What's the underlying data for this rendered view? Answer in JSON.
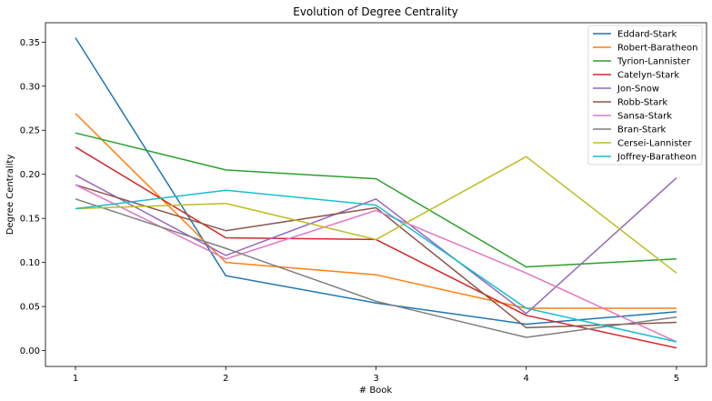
{
  "chart_data": {
    "type": "line",
    "title": "Evolution of Degree Centrality",
    "xlabel": "# Book",
    "ylabel": "Degree Centrality",
    "x": [
      1,
      2,
      3,
      4,
      5
    ],
    "xticks": [
      "1",
      "2",
      "3",
      "4",
      "5"
    ],
    "xlim": [
      0.8,
      5.2
    ],
    "ylim": [
      -0.018,
      0.372
    ],
    "yticks": [
      "0.00",
      "0.05",
      "0.10",
      "0.15",
      "0.20",
      "0.25",
      "0.30",
      "0.35"
    ],
    "grid": false,
    "legend_position": "top-right",
    "series": [
      {
        "name": "Eddard-Stark",
        "color": "#1f77b4",
        "values": [
          0.355,
          0.085,
          0.054,
          0.03,
          0.044
        ]
      },
      {
        "name": "Robert-Baratheon",
        "color": "#ff7f0e",
        "values": [
          0.269,
          0.1,
          0.086,
          0.048,
          0.048
        ]
      },
      {
        "name": "Tyrion-Lannister",
        "color": "#2ca02c",
        "values": [
          0.247,
          0.205,
          0.195,
          0.095,
          0.104
        ]
      },
      {
        "name": "Catelyn-Stark",
        "color": "#d62728",
        "values": [
          0.231,
          0.128,
          0.126,
          0.04,
          0.003
        ]
      },
      {
        "name": "Jon-Snow",
        "color": "#9467bd",
        "values": [
          0.199,
          0.108,
          0.172,
          0.042,
          0.196
        ]
      },
      {
        "name": "Robb-Stark",
        "color": "#8c564b",
        "values": [
          0.188,
          0.136,
          0.162,
          0.026,
          0.032
        ]
      },
      {
        "name": "Sansa-Stark",
        "color": "#e377c2",
        "values": [
          0.188,
          0.104,
          0.159,
          0.088,
          0.01
        ]
      },
      {
        "name": "Bran-Stark",
        "color": "#7f7f7f",
        "values": [
          0.172,
          0.116,
          0.056,
          0.015,
          0.038
        ]
      },
      {
        "name": "Cersei-Lannister",
        "color": "#bcbd22",
        "values": [
          0.161,
          0.167,
          0.126,
          0.22,
          0.088
        ]
      },
      {
        "name": "Joffrey-Baratheon",
        "color": "#17becf",
        "values": [
          0.161,
          0.182,
          0.165,
          0.048,
          0.01
        ]
      }
    ]
  }
}
